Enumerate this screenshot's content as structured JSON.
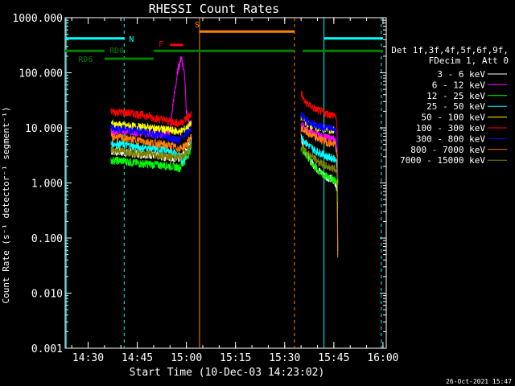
{
  "chart_data": {
    "type": "line",
    "title": "RHESSI Count Rates",
    "xlabel": "Start Time (10-Dec-03 14:23:02)",
    "ylabel": "Count Rate (s⁻¹ detector⁻¹ segment⁻¹)",
    "yscale": "log",
    "ylim": [
      0.001,
      1000
    ],
    "xlim_minutes_from_start": [
      0,
      98
    ],
    "ytick_labels": [
      "0.001",
      "0.010",
      "0.100",
      "1.000",
      "10.000",
      "100.000",
      "1000.000"
    ],
    "ytick_values": [
      0.001,
      0.01,
      0.1,
      1,
      10,
      100,
      1000
    ],
    "xtick_labels": [
      "14:30",
      "14:45",
      "15:00",
      "15:15",
      "15:30",
      "15:45",
      "16:00"
    ],
    "xtick_values": [
      7,
      22,
      37,
      52,
      67,
      82,
      97
    ],
    "legend": {
      "placement": "right",
      "header": [
        "Det 1f,3f,4f,5f,6f,9f,",
        "FDecim 1, Att 0"
      ],
      "entries": [
        {
          "label": "3 - 6 keV",
          "color": "#ffffff"
        },
        {
          "label": "6 - 12 keV",
          "color": "#ff00ff"
        },
        {
          "label": "12 - 25 keV",
          "color": "#00ff00"
        },
        {
          "label": "25 - 50 keV",
          "color": "#00ffff"
        },
        {
          "label": "50 - 100 keV",
          "color": "#ffff00"
        },
        {
          "label": "100 - 300 keV",
          "color": "#ff0000"
        },
        {
          "label": "300 - 800 keV",
          "color": "#0000ff"
        },
        {
          "label": "800 - 7000 keV",
          "color": "#ff8000"
        },
        {
          "label": "7000 - 15000 keV",
          "color": "#808000"
        }
      ]
    },
    "series": [
      {
        "name": "3 - 6 keV",
        "color": "#ffffff",
        "seg1": [
          [
            14,
            3.8
          ],
          [
            18,
            3.6
          ],
          [
            22,
            3.4
          ],
          [
            26,
            3.3
          ],
          [
            30,
            3.0
          ],
          [
            33,
            2.9
          ],
          [
            35,
            2.8
          ],
          [
            37,
            4.0
          ],
          [
            38.5,
            6.0
          ]
        ],
        "seg2": [
          [
            72,
            7.0
          ],
          [
            73,
            4.0
          ],
          [
            75,
            2.5
          ],
          [
            77,
            1.8
          ],
          [
            79,
            1.4
          ],
          [
            81,
            1.2
          ],
          [
            82.5,
            1.0
          ],
          [
            83,
            0.8
          ],
          [
            83.2,
            0.3
          ]
        ]
      },
      {
        "name": "6 - 12 keV",
        "color": "#ff00ff",
        "seg1": [
          [
            14,
            9.0
          ],
          [
            20,
            8.5
          ],
          [
            26,
            8.0
          ],
          [
            30,
            7.5
          ],
          [
            32,
            8.5
          ],
          [
            33,
            30
          ],
          [
            34.5,
            120
          ],
          [
            35.5,
            200
          ],
          [
            36.5,
            90
          ],
          [
            37,
            20
          ],
          [
            38,
            10
          ],
          [
            38.5,
            12
          ]
        ],
        "seg2": [
          [
            72,
            12
          ],
          [
            74,
            9
          ],
          [
            78,
            7
          ],
          [
            81,
            6.5
          ],
          [
            82.5,
            6
          ],
          [
            83,
            4
          ],
          [
            83.2,
            0.8
          ]
        ]
      },
      {
        "name": "12 - 25 keV",
        "color": "#00ff00",
        "seg1": [
          [
            14,
            2.6
          ],
          [
            18,
            2.5
          ],
          [
            22,
            2.3
          ],
          [
            26,
            2.2
          ],
          [
            30,
            2.1
          ],
          [
            33,
            2.0
          ],
          [
            35,
            1.9
          ],
          [
            37,
            2.8
          ],
          [
            38.5,
            4.5
          ]
        ],
        "seg2": [
          [
            72,
            4.5
          ],
          [
            74,
            3.0
          ],
          [
            76,
            2.0
          ],
          [
            78,
            1.5
          ],
          [
            80,
            1.3
          ],
          [
            82,
            1.2
          ],
          [
            83,
            1.0
          ],
          [
            83.2,
            0.05
          ]
        ]
      },
      {
        "name": "25 - 50 keV",
        "color": "#00ffff",
        "seg1": [
          [
            14,
            5.2
          ],
          [
            18,
            5.0
          ],
          [
            22,
            4.5
          ],
          [
            26,
            4.2
          ],
          [
            30,
            4.0
          ],
          [
            33,
            3.6
          ],
          [
            35,
            3.0
          ],
          [
            36,
            2.5
          ],
          [
            37,
            3.5
          ],
          [
            38.5,
            5.0
          ]
        ],
        "seg2": [
          [
            72,
            7.0
          ],
          [
            74,
            5.0
          ],
          [
            76,
            4.0
          ],
          [
            78,
            3.5
          ],
          [
            80,
            3.0
          ],
          [
            82.5,
            2.8
          ],
          [
            83,
            2.0
          ],
          [
            83.2,
            0.05
          ]
        ]
      },
      {
        "name": "50 - 100 keV",
        "color": "#ffff00",
        "seg1": [
          [
            14,
            12
          ],
          [
            18,
            11
          ],
          [
            22,
            10.5
          ],
          [
            26,
            10
          ],
          [
            30,
            9.5
          ],
          [
            33,
            9
          ],
          [
            35,
            8.5
          ],
          [
            37,
            10
          ],
          [
            38.5,
            12
          ]
        ],
        "seg2": [
          [
            72,
            16
          ],
          [
            74,
            12
          ],
          [
            77,
            10
          ],
          [
            80,
            9.5
          ],
          [
            82.5,
            9
          ],
          [
            83,
            6
          ],
          [
            83.2,
            1.0
          ]
        ]
      },
      {
        "name": "100 - 300 keV",
        "color": "#ff0000",
        "seg1": [
          [
            14,
            20
          ],
          [
            18,
            19
          ],
          [
            22,
            18
          ],
          [
            26,
            16
          ],
          [
            30,
            14
          ],
          [
            33,
            13
          ],
          [
            35,
            12
          ],
          [
            37,
            15
          ],
          [
            38.5,
            18
          ]
        ],
        "seg2": [
          [
            72,
            45
          ],
          [
            73,
            30
          ],
          [
            75,
            25
          ],
          [
            77,
            21
          ],
          [
            80,
            18
          ],
          [
            82.5,
            17
          ],
          [
            83,
            10
          ],
          [
            83.2,
            2.0
          ]
        ]
      },
      {
        "name": "300 - 800 keV",
        "color": "#0000ff",
        "seg1": [
          [
            14,
            10
          ],
          [
            18,
            9.5
          ],
          [
            22,
            9
          ],
          [
            26,
            8
          ],
          [
            30,
            7
          ],
          [
            33,
            6.5
          ],
          [
            35,
            6
          ],
          [
            37,
            8
          ],
          [
            38.5,
            10
          ]
        ],
        "seg2": [
          [
            72,
            18
          ],
          [
            74,
            13
          ],
          [
            77,
            11
          ],
          [
            80,
            10
          ],
          [
            82.5,
            9.5
          ],
          [
            83,
            6
          ],
          [
            83.2,
            1.0
          ]
        ]
      },
      {
        "name": "800 - 7000 keV",
        "color": "#ff8000",
        "seg1": [
          [
            14,
            7
          ],
          [
            18,
            6.5
          ],
          [
            22,
            6
          ],
          [
            26,
            5.5
          ],
          [
            30,
            5
          ],
          [
            33,
            4.6
          ],
          [
            35,
            4.2
          ],
          [
            37,
            5
          ],
          [
            38.5,
            7
          ]
        ],
        "seg2": [
          [
            72,
            10
          ],
          [
            74,
            8
          ],
          [
            77,
            6.5
          ],
          [
            80,
            5.5
          ],
          [
            82.5,
            5
          ],
          [
            83,
            3
          ],
          [
            83.2,
            0.05
          ]
        ]
      },
      {
        "name": "7000 - 15000 keV",
        "color": "#808000",
        "seg1": [
          [
            14,
            4.0
          ],
          [
            18,
            3.8
          ],
          [
            22,
            3.5
          ],
          [
            26,
            3.3
          ],
          [
            30,
            3.1
          ],
          [
            33,
            3.0
          ],
          [
            35,
            2.9
          ],
          [
            37,
            3.5
          ],
          [
            38.5,
            5
          ]
        ],
        "seg2": [
          [
            72,
            5
          ],
          [
            74,
            3.5
          ],
          [
            77,
            2.5
          ],
          [
            80,
            2.0
          ],
          [
            82.5,
            1.8
          ],
          [
            83,
            1.5
          ],
          [
            83.2,
            0.5
          ]
        ]
      }
    ],
    "state_bars": [
      {
        "label": "RD0",
        "color": "#008000",
        "y": 250,
        "spans": [
          [
            0,
            12
          ],
          [
            27,
            70
          ],
          [
            72.5,
            97
          ]
        ]
      },
      {
        "label": "RD6",
        "color": "#008000",
        "y": 180,
        "spans": [
          [
            12,
            27
          ]
        ]
      },
      {
        "label": "N",
        "color": "#00ffff",
        "y": 420,
        "spans": [
          [
            0,
            18
          ],
          [
            79,
            97
          ]
        ]
      },
      {
        "label": "S",
        "color": "#ff8000",
        "y": 560,
        "spans": [
          [
            41,
            70
          ]
        ]
      },
      {
        "label": "F",
        "color": "#ff0000",
        "y": 320,
        "spans": [
          [
            32,
            36
          ]
        ]
      }
    ],
    "vertical_lines": [
      {
        "x": 18,
        "color": "#00ffff",
        "style": "dashed"
      },
      {
        "x": 41,
        "color": "#ff8000",
        "style": "solid"
      },
      {
        "x": 70,
        "color": "#ff8000",
        "style": "dashed"
      },
      {
        "x": 79,
        "color": "#00ffff",
        "style": "solid"
      },
      {
        "x": 96.5,
        "color": "#00ffff",
        "style": "dashed"
      },
      {
        "x": 0.3,
        "color": "#00ffff",
        "style": "solid"
      }
    ],
    "timestamp": "26-Oct-2021 15:47"
  }
}
